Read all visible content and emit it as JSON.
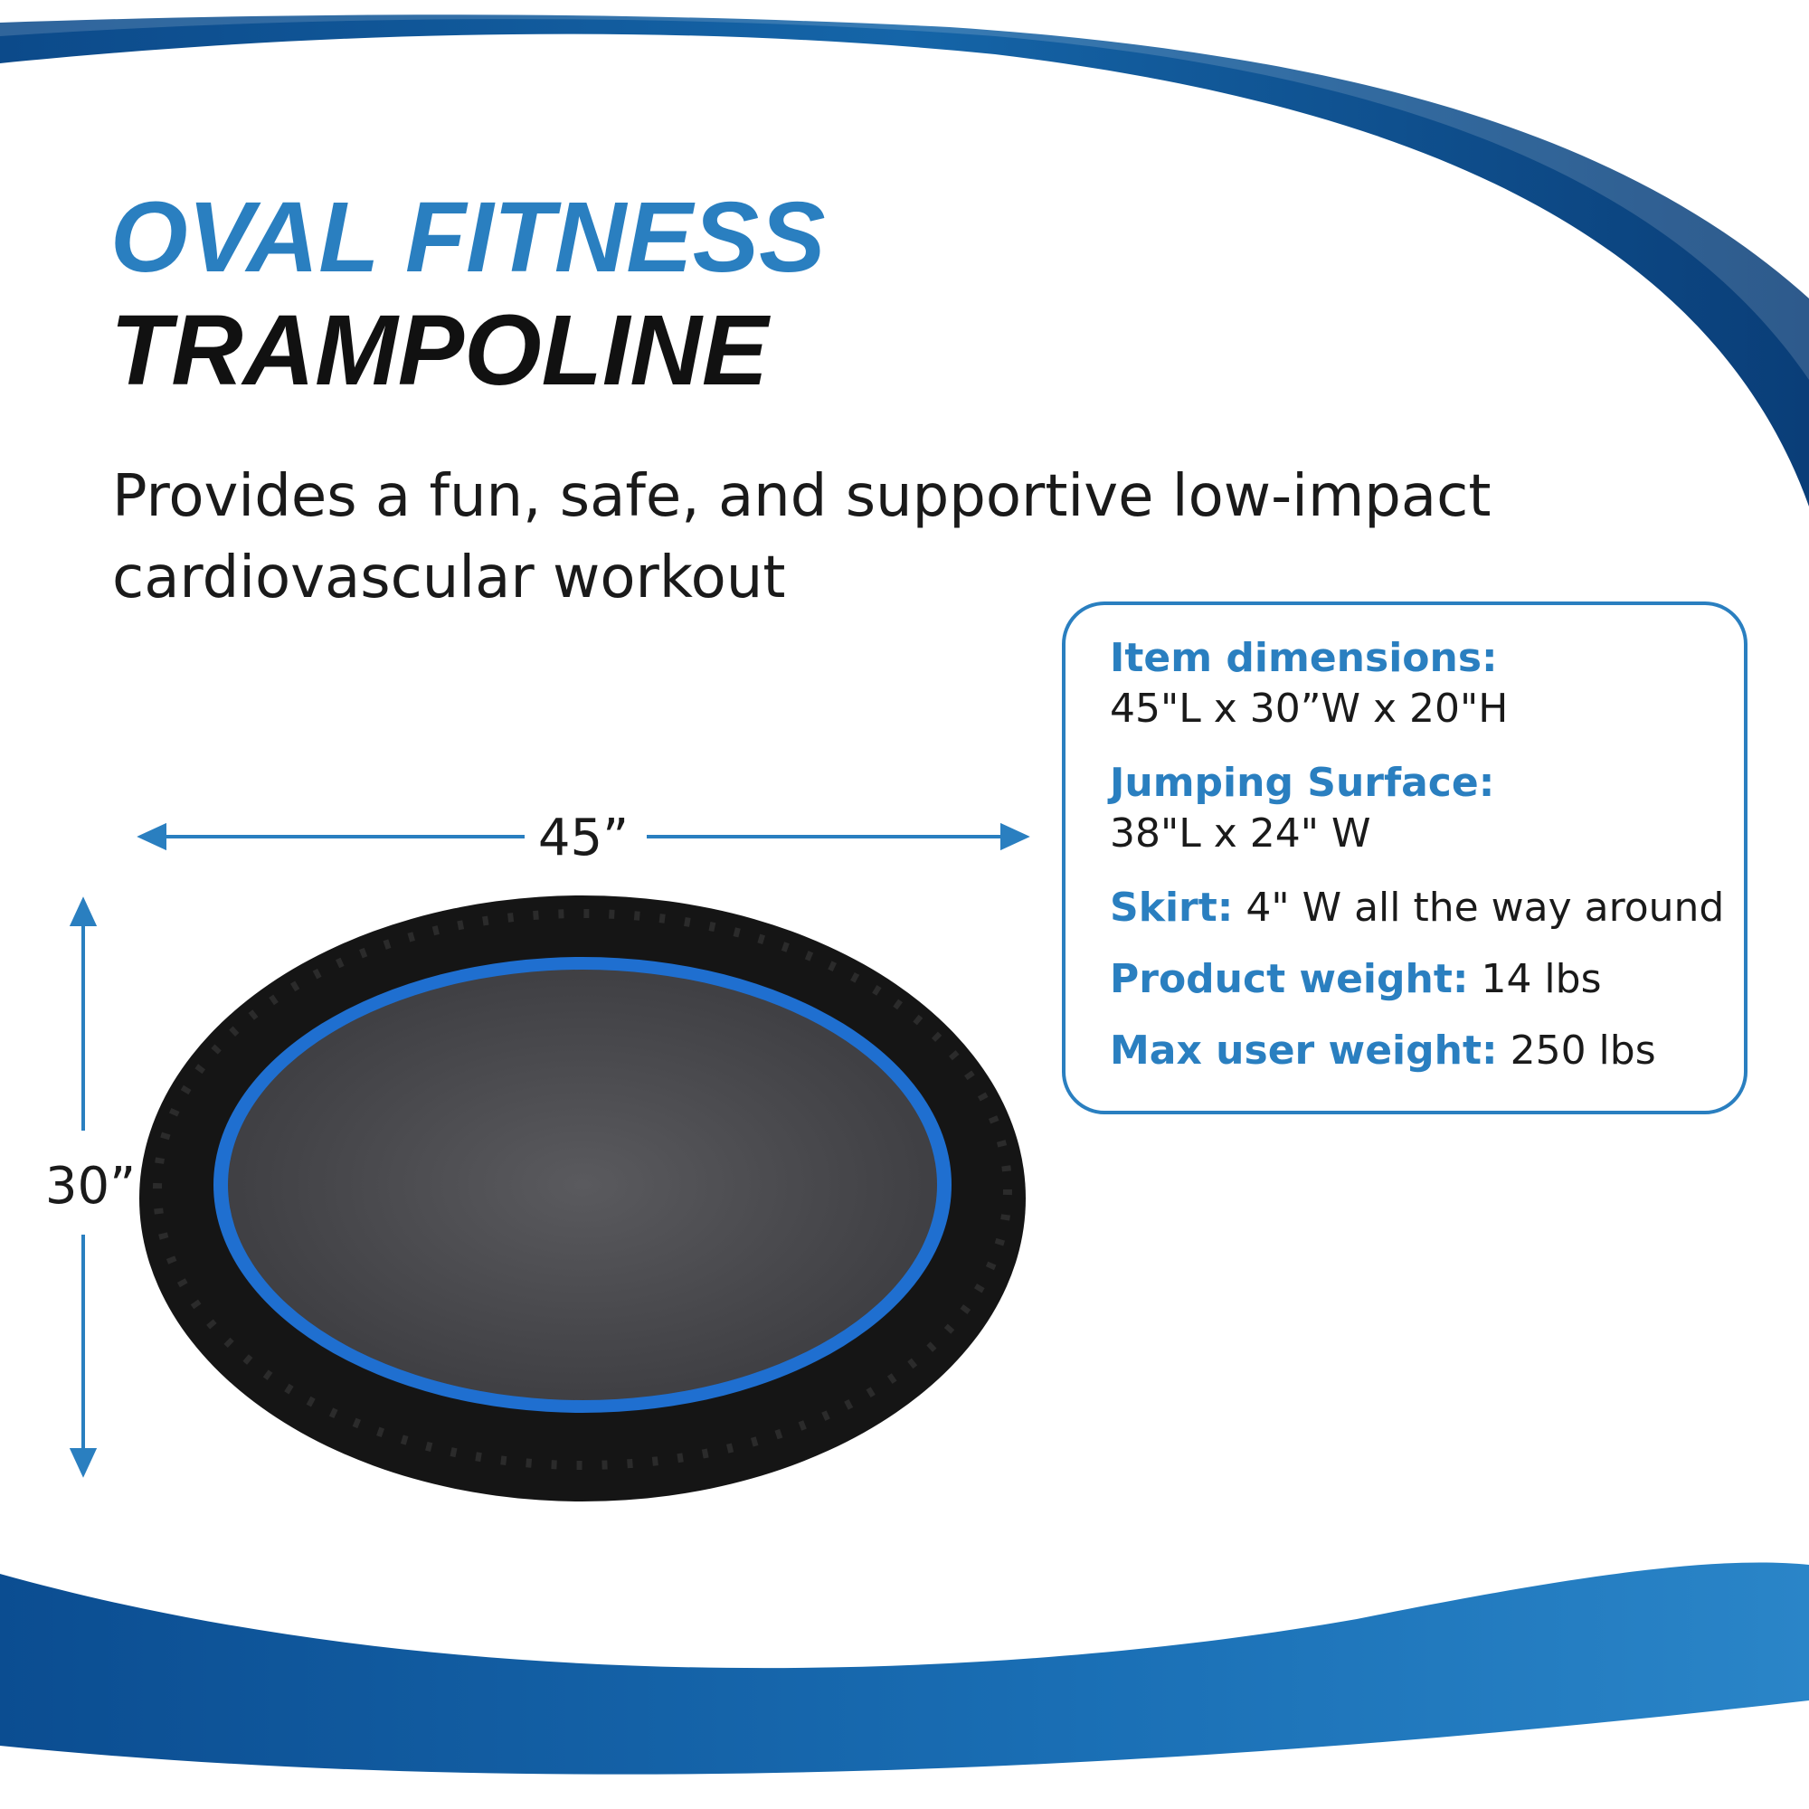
{
  "header": {
    "title_line1": "OVAL FITNESS",
    "title_line2": "TRAMPOLINE",
    "subtitle_line1": "Provides a fun, safe, and supportive low-impact",
    "subtitle_line2": "cardiovascular workout"
  },
  "dimensions": {
    "length": "45”",
    "width": "30”"
  },
  "specs": [
    {
      "label": "Item dimensions:",
      "value": "45\"L x 30”W x 20\"H"
    },
    {
      "label": "Jumping Surface:",
      "value": "38\"L x 24\" W"
    },
    {
      "label": "Skirt:",
      "value": "4\" W all the way around"
    },
    {
      "label": "Product weight:",
      "value": "14 lbs"
    },
    {
      "label": "Max user weight:",
      "value": "250 lbs"
    }
  ]
}
